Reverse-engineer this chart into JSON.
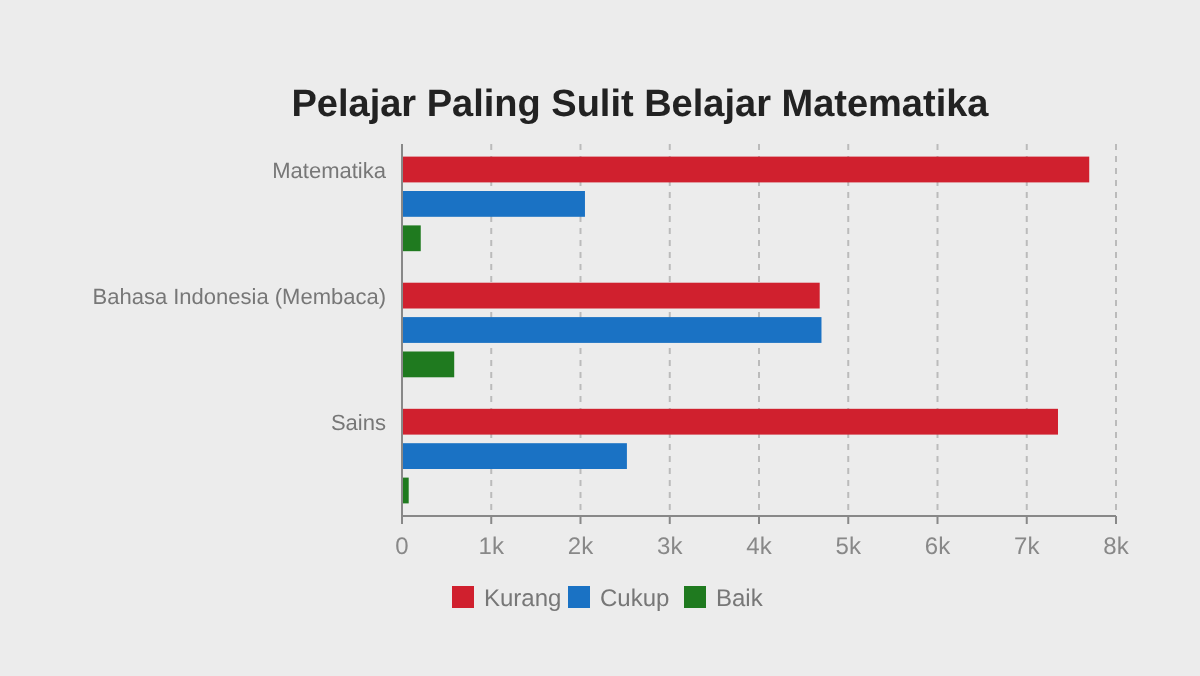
{
  "chart_data": {
    "type": "bar",
    "orientation": "horizontal",
    "title": "Pelajar Paling Sulit Belajar Matematika",
    "categories": [
      "Matematika",
      "Bahasa Indonesia (Membaca)",
      "Sains"
    ],
    "series": [
      {
        "name": "Kurang",
        "color": "#d0202e",
        "values": [
          7700,
          4680,
          7350
        ]
      },
      {
        "name": "Cukup",
        "color": "#1a72c4",
        "values": [
          2050,
          4700,
          2520
        ]
      },
      {
        "name": "Baik",
        "color": "#1f7a1f",
        "values": [
          210,
          585,
          75
        ]
      }
    ],
    "xlim": [
      0,
      8000
    ],
    "xticks": [
      0,
      {
        "value": 1000,
        "label": "1k"
      },
      {
        "value": 2000,
        "label": "2k"
      },
      {
        "value": 3000,
        "label": "3k"
      },
      {
        "value": 4000,
        "label": "4k"
      },
      {
        "value": 5000,
        "label": "5k"
      },
      {
        "value": 6000,
        "label": "6k"
      },
      {
        "value": 7000,
        "label": "7k"
      },
      {
        "value": 8000,
        "label": "8k"
      }
    ],
    "grid": "x",
    "legend": "bottom"
  }
}
